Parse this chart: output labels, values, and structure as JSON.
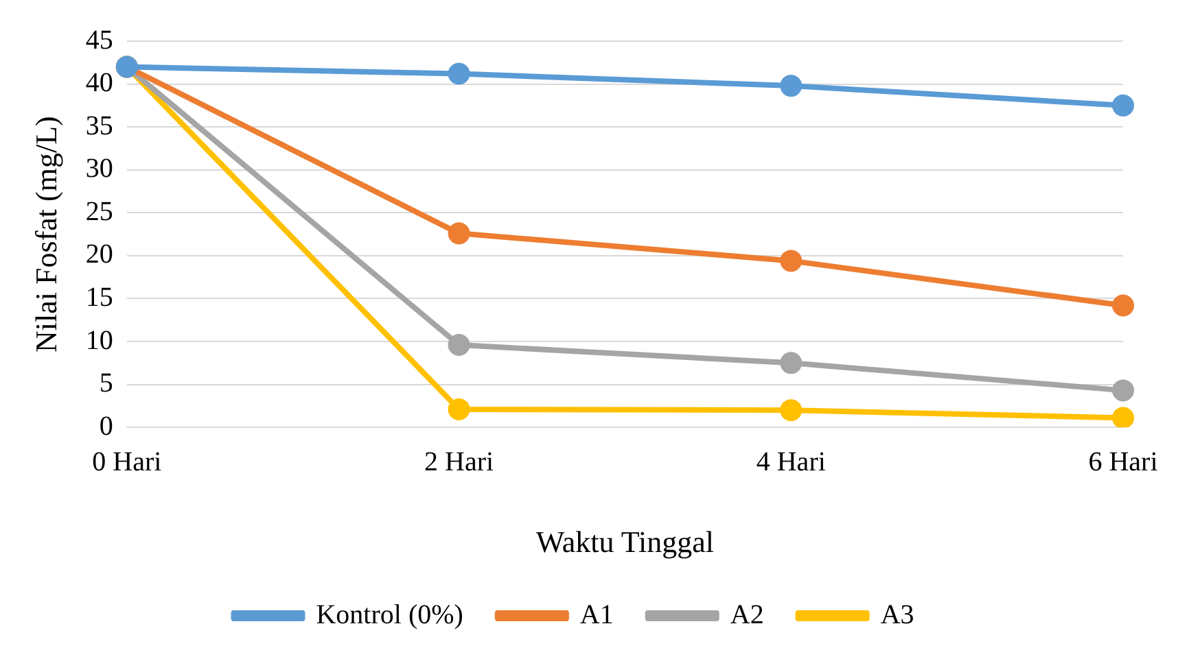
{
  "chart_data": {
    "type": "line",
    "xlabel": "Waktu Tinggal",
    "ylabel": "Nilai Fosfat (mg/L)",
    "categories": [
      "0 Hari",
      "2 Hari",
      "4 Hari",
      "6 Hari"
    ],
    "series": [
      {
        "name": "Kontrol (0%)",
        "color": "#5b9bd5",
        "values": [
          42,
          41.2,
          39.8,
          37.5
        ]
      },
      {
        "name": "A1",
        "color": "#ed7d31",
        "values": [
          42,
          22.6,
          19.4,
          14.2
        ]
      },
      {
        "name": "A2",
        "color": "#a5a5a5",
        "values": [
          42,
          9.6,
          7.5,
          4.3
        ]
      },
      {
        "name": "A3",
        "color": "#ffc000",
        "values": [
          42,
          2.1,
          2,
          1.1
        ]
      }
    ],
    "ylim": [
      0,
      45
    ],
    "yticks": [
      0,
      5,
      10,
      15,
      20,
      25,
      30,
      35,
      40,
      45
    ],
    "grid": "y",
    "legend": "bottom",
    "marker": "circle",
    "line_style": "solid"
  }
}
